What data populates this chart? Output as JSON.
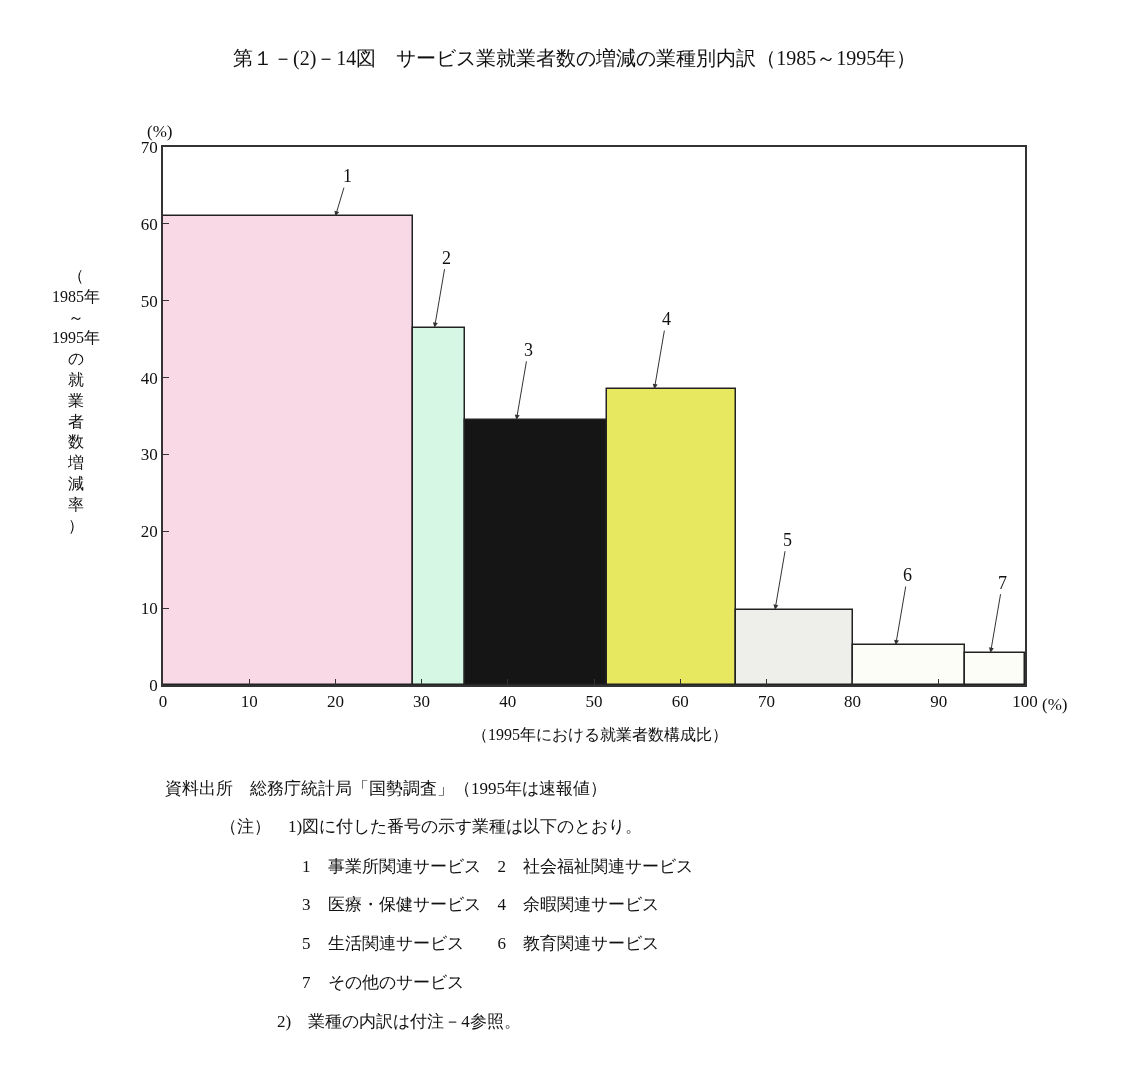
{
  "chart_data": {
    "type": "histogram",
    "title": "第１－(2)－14図　サービス業就業者数の増減の業種別内訳（1985～1995年）",
    "xlabel": "（1995年における就業者数構成比）",
    "ylabel": "（1985年～1995年の就業者数増減率）",
    "bins": [
      0,
      29,
      35,
      51.5,
      66.5,
      80,
      93,
      100
    ],
    "values": [
      61,
      46.5,
      34.5,
      38.5,
      9.8,
      5.2,
      4.2
    ],
    "colors": [
      "#f9d9e6",
      "#d5f7e3",
      "#151515",
      "#e8e860",
      "#eeeeea",
      "#fdfdf8",
      "#fdfdf8"
    ],
    "xlim": [
      0,
      100
    ],
    "xticks": [
      0,
      10,
      20,
      30,
      40,
      50,
      60,
      70,
      80,
      90,
      100
    ],
    "ylim": [
      0,
      70
    ],
    "yticks": [
      0,
      10,
      20,
      30,
      40,
      50,
      60,
      70
    ],
    "annotations": [
      "(%)",
      "(%)",
      {
        "text": "1",
        "x": 20,
        "y": 61
      },
      {
        "text": "2",
        "x": 31.5,
        "y": 46.5
      },
      {
        "text": "3",
        "x": 41,
        "y": 34.5
      },
      {
        "text": "4",
        "x": 57,
        "y": 38.5
      },
      {
        "text": "5",
        "x": 71,
        "y": 9.8
      },
      {
        "text": "6",
        "x": 85,
        "y": 5.2
      },
      {
        "text": "7",
        "x": 96,
        "y": 4.2
      },
      "資料出所　総務庁統計局「国勢調査」（1995年は速報値）",
      "（注）　1)図に付した番号の示す業種は以下のとおり。",
      "1　事業所関連サービス　2　社会福祉関連サービス",
      "3　医療・保健サービス　4　余暇関連サービス",
      "5　生活関連サービス　　6　教育関連サービス",
      "7　その他のサービス",
      "2)　業種の内訳は付注－4参照。"
    ]
  }
}
